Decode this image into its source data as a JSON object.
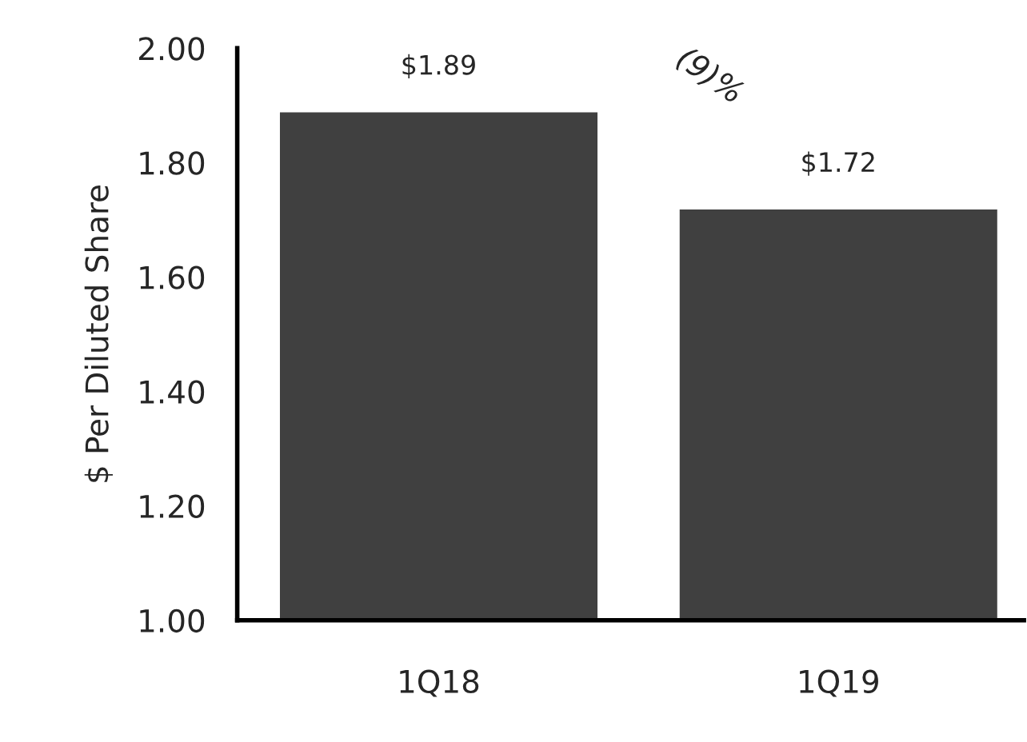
{
  "chart_data": {
    "type": "bar",
    "ylabel": "$ Per Diluted Share",
    "categories": [
      "1Q18",
      "1Q19"
    ],
    "values": [
      1.89,
      1.72
    ],
    "color": "#404040",
    "value_labels": [
      "$1.89",
      "$1.72"
    ],
    "ylim": [
      1.0,
      2.0
    ],
    "yticks": [
      {
        "value": 1.0,
        "label": "1.00"
      },
      {
        "value": 1.2,
        "label": "1.20"
      },
      {
        "value": 1.4,
        "label": "1.40"
      },
      {
        "value": 1.6,
        "label": "1.60"
      },
      {
        "value": 1.8,
        "label": "1.80"
      },
      {
        "value": 2.0,
        "label": "2.00"
      }
    ],
    "annotations": [
      "(9)%"
    ],
    "grid": false,
    "legend": false
  }
}
